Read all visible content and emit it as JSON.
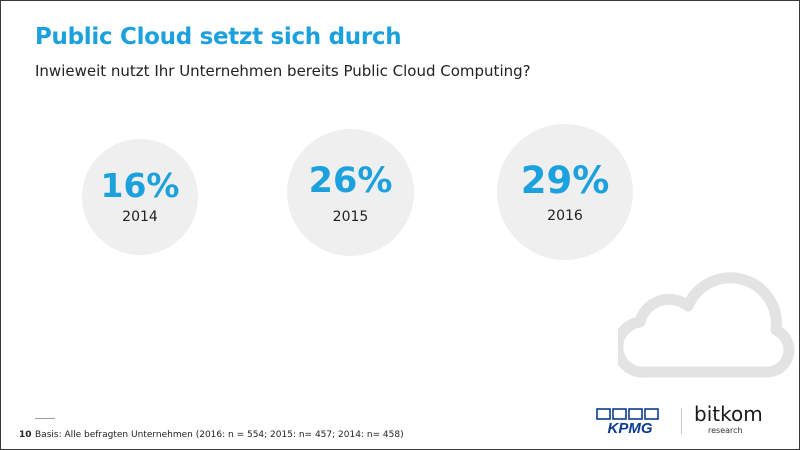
{
  "title": "Public Cloud setzt sich durch",
  "subtitle": "Inwieweit nutzt Ihr Unternehmen bereits Public Cloud Computing?",
  "chart_data": {
    "type": "table",
    "title": "Public Cloud setzt sich durch",
    "subtitle": "Inwieweit nutzt Ihr Unternehmen bereits Public Cloud Computing?",
    "categories": [
      "2014",
      "2015",
      "2016"
    ],
    "values": [
      16,
      26,
      29
    ],
    "labels": [
      "16%",
      "26%",
      "29%"
    ],
    "unit": "%"
  },
  "footer": {
    "page_number": "10",
    "note": "Basis: Alle befragten Unternehmen (2016: n = 554; 2015: n= 457; 2014: n= 458)"
  },
  "logos": {
    "kpmg": "KPMG",
    "bitkom_word": "bitkom",
    "bitkom_sub": "research"
  },
  "icons": [
    "cloud-icon"
  ],
  "colors": {
    "accent": "#1ba1dd",
    "circle_fill": "#efefef",
    "kpmg_blue": "#0a3d91",
    "cloud_stroke": "#e3e3e3"
  }
}
